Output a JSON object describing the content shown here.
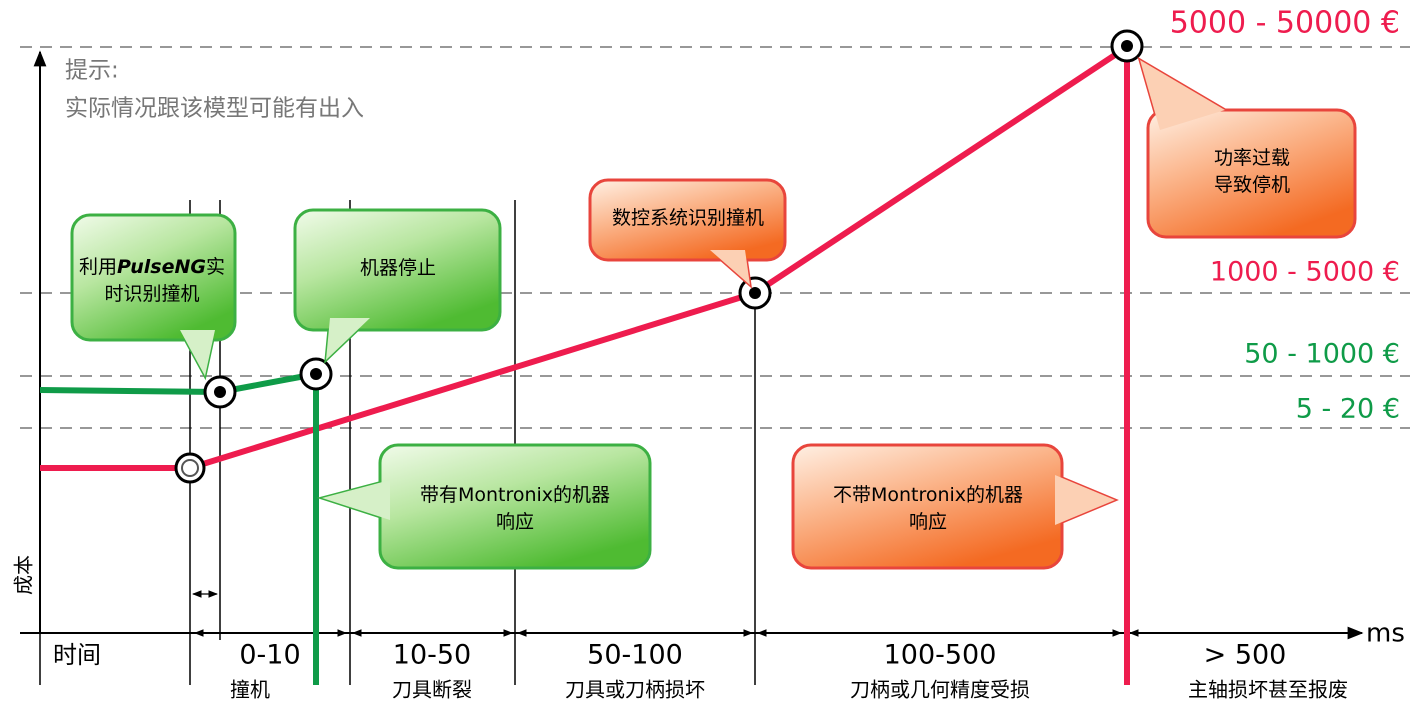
{
  "note": {
    "title": "提示:",
    "text": "实际情况跟该模型可能有出入"
  },
  "axes": {
    "y_label": "成本",
    "x_unit": "ms",
    "time_label": "时间"
  },
  "cost_levels": [
    "5000 - 50000 €",
    "1000 - 5000 €",
    "50 - 1000 €",
    "5 - 20 €"
  ],
  "intervals": [
    {
      "range": "0-10",
      "label": "撞机"
    },
    {
      "range": "10-50",
      "label": "刀具断裂"
    },
    {
      "range": "50-100",
      "label": "刀具或刀柄损坏"
    },
    {
      "range": "100-500",
      "label": "刀柄或几何精度受损"
    },
    {
      "range": "> 500",
      "label": "主轴损坏甚至报废"
    }
  ],
  "callouts": [
    {
      "lines": [
        [
          "利用",
          "PulseNG",
          "实"
        ],
        [
          "时识别撞机"
        ]
      ]
    },
    {
      "lines": [
        [
          "机器停止"
        ]
      ]
    },
    {
      "lines": [
        [
          "数控系统识别撞机"
        ]
      ]
    },
    {
      "lines": [
        [
          "功率过载"
        ],
        [
          "导致停机"
        ]
      ]
    },
    {
      "lines": [
        [
          "带有Montronix的机器"
        ],
        [
          "响应"
        ]
      ]
    },
    {
      "lines": [
        [
          "不带Montronix的机器"
        ],
        [
          "响应"
        ]
      ]
    }
  ]
}
